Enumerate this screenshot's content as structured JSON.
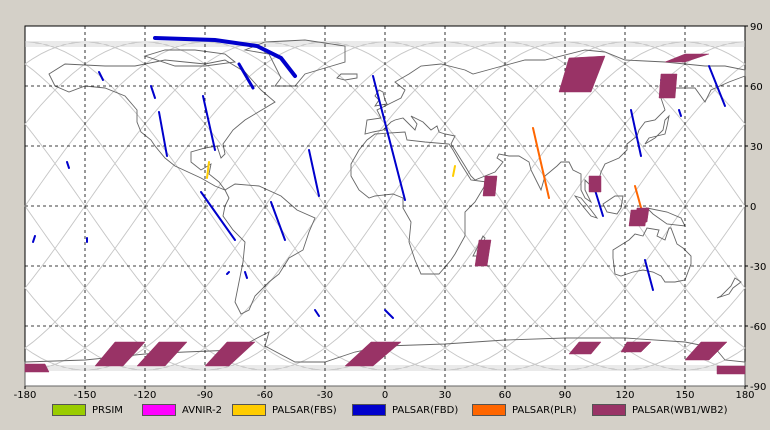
{
  "chart_data": {
    "type": "map-footprints",
    "xlim": [
      -180,
      180
    ],
    "ylim": [
      -90,
      90
    ],
    "x_ticks": [
      -180,
      -150,
      -120,
      -90,
      -60,
      -30,
      0,
      30,
      60,
      90,
      120,
      150,
      180
    ],
    "y_ticks": [
      90,
      60,
      30,
      0,
      -30,
      -60,
      -90
    ],
    "grid": true,
    "legend_position": "bottom",
    "series": [
      {
        "name": "PRSIM",
        "color": "#99cc00",
        "swaths": []
      },
      {
        "name": "AVNIR-2",
        "color": "#ff00ff",
        "swaths": []
      },
      {
        "name": "PALSAR(FBS)",
        "color": "#ffcc00",
        "swaths": [
          {
            "points": [
              [
                -88,
                22
              ],
              [
                -89,
                14
              ]
            ]
          },
          {
            "points": [
              [
                35,
                20
              ],
              [
                34,
                15
              ]
            ]
          }
        ]
      },
      {
        "name": "PALSAR(FBD)",
        "color": "#0000cc",
        "swaths": [
          {
            "points": [
              [
                -115,
                84
              ],
              [
                -85,
                83
              ],
              [
                -64,
                80
              ],
              [
                -52,
                74
              ],
              [
                -45,
                65
              ]
            ],
            "width": 4
          },
          {
            "points": [
              [
                -143,
                67
              ],
              [
                -141,
                63
              ]
            ]
          },
          {
            "points": [
              [
                -117,
                60
              ],
              [
                -115,
                54
              ]
            ]
          },
          {
            "points": [
              [
                -113,
                47
              ],
              [
                -109,
                25
              ]
            ]
          },
          {
            "points": [
              [
                -91,
                55
              ],
              [
                -85,
                28
              ]
            ]
          },
          {
            "points": [
              [
                -73,
                71
              ],
              [
                -66,
                59
              ]
            ],
            "width": 3
          },
          {
            "points": [
              [
                -92,
                7
              ],
              [
                -75,
                -17
              ]
            ]
          },
          {
            "points": [
              [
                -57,
                2
              ],
              [
                -50,
                -17
              ]
            ]
          },
          {
            "points": [
              [
                -70,
                -33
              ],
              [
                -69,
                -36
              ]
            ]
          },
          {
            "points": [
              [
                -38,
                28
              ],
              [
                -33,
                5
              ]
            ]
          },
          {
            "points": [
              [
                -35,
                -52
              ],
              [
                -33,
                -55
              ]
            ]
          },
          {
            "points": [
              [
                -6,
                65
              ],
              [
                10,
                3
              ]
            ]
          },
          {
            "points": [
              [
                0,
                -52
              ],
              [
                4,
                -56
              ]
            ]
          },
          {
            "points": [
              [
                -159,
                22
              ],
              [
                -158,
                19
              ]
            ]
          },
          {
            "points": [
              [
                -175,
                -15
              ],
              [
                -176,
                -18
              ]
            ]
          },
          {
            "points": [
              [
                -149,
                -16
              ],
              [
                -149,
                -18
              ]
            ]
          },
          {
            "points": [
              [
                123,
                48
              ],
              [
                128,
                25
              ]
            ]
          },
          {
            "points": [
              [
                138,
                63
              ],
              [
                144,
                58
              ]
            ]
          },
          {
            "points": [
              [
                147,
                48
              ],
              [
                148,
                45
              ]
            ]
          },
          {
            "points": [
              [
                162,
                70
              ],
              [
                170,
                50
              ]
            ]
          },
          {
            "points": [
              [
                130,
                -27
              ],
              [
                134,
                -42
              ]
            ]
          },
          {
            "points": [
              [
                105,
                8
              ],
              [
                109,
                -5
              ]
            ]
          },
          {
            "points": [
              [
                -78,
                -33
              ],
              [
                -79,
                -34
              ]
            ]
          }
        ]
      },
      {
        "name": "PALSAR(PLR)",
        "color": "#ff6600",
        "swaths": [
          {
            "points": [
              [
                74,
                39
              ],
              [
                82,
                4
              ]
            ]
          },
          {
            "points": [
              [
                125,
                10
              ],
              [
                130,
                -8
              ]
            ]
          }
        ]
      },
      {
        "name": "PALSAR(WB1/WB2)",
        "color": "#993366",
        "swaths": [
          {
            "polygon": [
              [
                92,
                74
              ],
              [
                110,
                75
              ],
              [
                103,
                57
              ],
              [
                87,
                57
              ]
            ]
          },
          {
            "polygon": [
              [
                150,
                76
              ],
              [
                162,
                76
              ],
              [
                150,
                72
              ],
              [
                140,
                72
              ]
            ]
          },
          {
            "polygon": [
              [
                138,
                66
              ],
              [
                146,
                66
              ],
              [
                145,
                54
              ],
              [
                137,
                54
              ]
            ]
          },
          {
            "polygon": [
              [
                50,
                15
              ],
              [
                56,
                15
              ],
              [
                55,
                5
              ],
              [
                49,
                5
              ]
            ]
          },
          {
            "polygon": [
              [
                47,
                -17
              ],
              [
                53,
                -17
              ],
              [
                51,
                -30
              ],
              [
                45,
                -30
              ]
            ]
          },
          {
            "polygon": [
              [
                102,
                15
              ],
              [
                108,
                15
              ],
              [
                108,
                7
              ],
              [
                102,
                7
              ]
            ]
          },
          {
            "polygon": [
              [
                126,
                -1
              ],
              [
                132,
                -1
              ],
              [
                131,
                -8
              ],
              [
                125,
                -8
              ]
            ]
          },
          {
            "polygon": [
              [
                -180,
                -79
              ],
              [
                -170,
                -79
              ],
              [
                -168,
                -83
              ],
              [
                -180,
                -83
              ]
            ]
          },
          {
            "polygon": [
              [
                -135,
                -68
              ],
              [
                -120,
                -68
              ],
              [
                -131,
                -80
              ],
              [
                -145,
                -80
              ]
            ]
          },
          {
            "polygon": [
              [
                -113,
                -68
              ],
              [
                -99,
                -68
              ],
              [
                -110,
                -80
              ],
              [
                -124,
                -80
              ]
            ]
          },
          {
            "polygon": [
              [
                -79,
                -68
              ],
              [
                -65,
                -68
              ],
              [
                -78,
                -80
              ],
              [
                -90,
                -80
              ]
            ]
          },
          {
            "polygon": [
              [
                -7,
                -68
              ],
              [
                8,
                -68
              ],
              [
                -6,
                -80
              ],
              [
                -20,
                -80
              ]
            ]
          },
          {
            "polygon": [
              [
                97,
                -68
              ],
              [
                108,
                -68
              ],
              [
                103,
                -74
              ],
              [
                92,
                -74
              ]
            ]
          },
          {
            "polygon": [
              [
                121,
                -68
              ],
              [
                133,
                -68
              ],
              [
                128,
                -73
              ],
              [
                118,
                -73
              ]
            ]
          },
          {
            "polygon": [
              [
                158,
                -68
              ],
              [
                171,
                -68
              ],
              [
                162,
                -77
              ],
              [
                150,
                -77
              ]
            ]
          },
          {
            "polygon": [
              [
                166,
                -80
              ],
              [
                180,
                -80
              ],
              [
                180,
                -84
              ],
              [
                166,
                -84
              ]
            ]
          },
          {
            "polygon": [
              [
                123,
                -2
              ],
              [
                131,
                -2
              ],
              [
                130,
                -10
              ],
              [
                122,
                -10
              ]
            ]
          }
        ]
      }
    ]
  }
}
